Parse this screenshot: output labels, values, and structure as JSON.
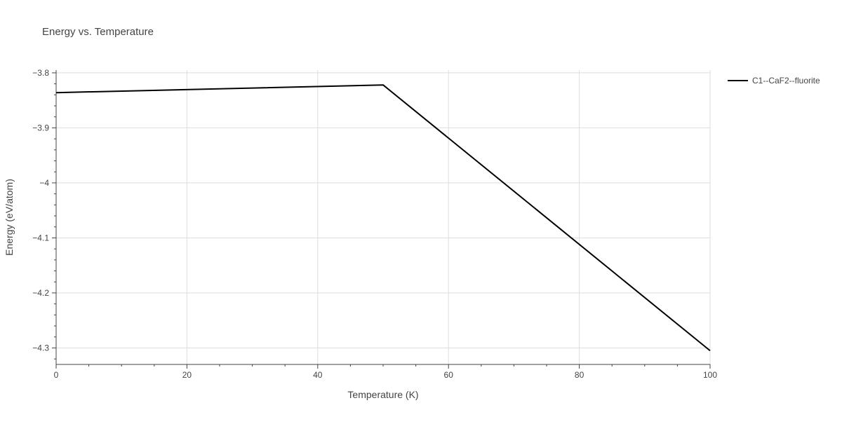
{
  "chart_data": {
    "type": "line",
    "title": "Energy vs. Temperature",
    "xlabel": "Temperature (K)",
    "ylabel": "Energy (eV/atom)",
    "xlim": [
      0,
      100
    ],
    "ylim": [
      -4.33,
      -3.795
    ],
    "x_ticks": [
      0,
      20,
      40,
      60,
      80,
      100
    ],
    "x_tick_labels": [
      "0",
      "20",
      "40",
      "60",
      "80",
      "100"
    ],
    "x_minor_step": 5,
    "y_ticks": [
      -3.8,
      -3.9,
      -4.0,
      -4.1,
      -4.2,
      -4.3
    ],
    "y_tick_labels": [
      "−3.8",
      "−3.9",
      "−4",
      "−4.1",
      "−4.2",
      "−4.3"
    ],
    "y_minor_step": 0.02,
    "grid": true,
    "legend_position": "top-right",
    "series": [
      {
        "name": "C1--CaF2--fluorite",
        "color": "#000000",
        "x": [
          0,
          50,
          100
        ],
        "y": [
          -3.836,
          -3.822,
          -4.305
        ]
      }
    ]
  }
}
